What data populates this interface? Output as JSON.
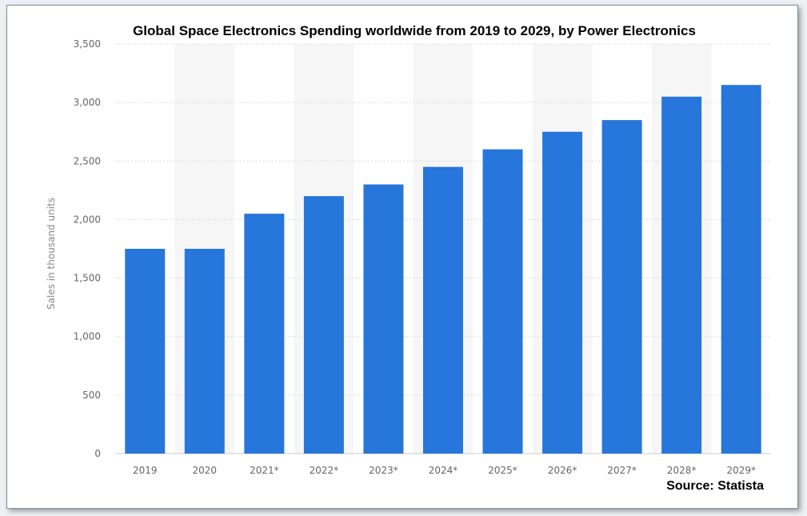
{
  "chart_data": {
    "type": "bar",
    "title": "Global Space Electronics Spending worldwide from 2019 to 2029, by  Power Electronics",
    "xlabel": "",
    "ylabel": "Sales in thousand units",
    "categories": [
      "2019",
      "2020",
      "2021*",
      "2022*",
      "2023*",
      "2024*",
      "2025*",
      "2026*",
      "2027*",
      "2028*",
      "2029*"
    ],
    "values": [
      1750,
      1750,
      2050,
      2200,
      2300,
      2450,
      2600,
      2750,
      2850,
      3050,
      3150
    ],
    "ylim": [
      0,
      3500
    ],
    "yticks": [
      "0",
      "500",
      "1,000",
      "1,500",
      "2,000",
      "2,500",
      "3,000",
      "3,500"
    ],
    "grid": true,
    "bar_color": "#2776db",
    "source": "Source: Statista"
  }
}
